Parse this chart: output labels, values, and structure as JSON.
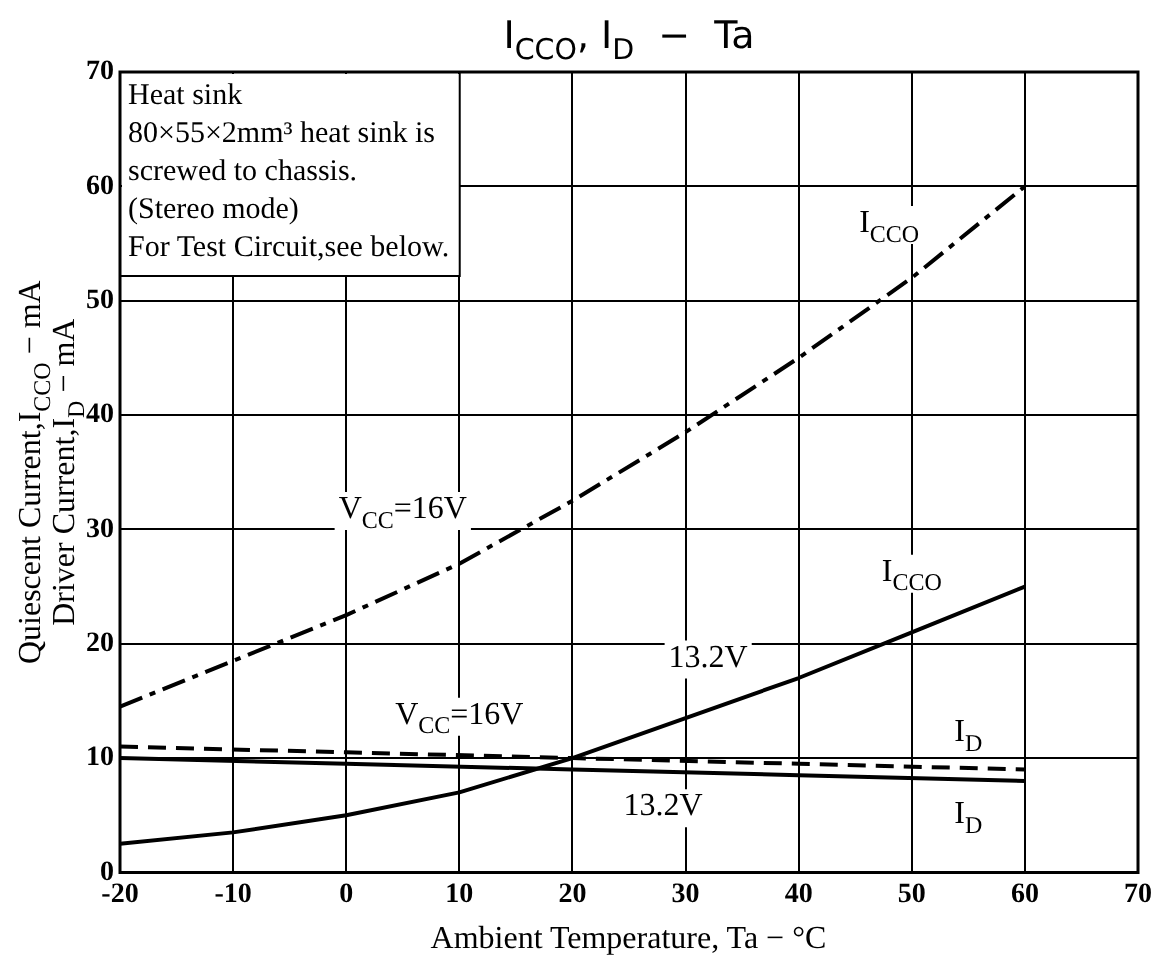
{
  "chart_data": {
    "type": "line",
    "title": "I$_{CCO}$, I$_{D}$  −  Ta",
    "xlabel": "Ambient Temperature, Ta − °C",
    "ylabel": "Quiescent Current,I$_{CCO}$ − mA\nDriver Current,I$_{D}$ − mA",
    "xlim": [
      -20,
      70
    ],
    "xticks": [
      -20,
      -10,
      0,
      10,
      20,
      30,
      40,
      50,
      60,
      70
    ],
    "ylim": [
      0,
      70
    ],
    "yticks": [
      0,
      10,
      20,
      30,
      40,
      50,
      60,
      70
    ],
    "grid": true,
    "legend": false,
    "marker": "none",
    "series": [
      {
        "color": "#000000",
        "line_style": "dashdot",
        "x": [
          -20,
          -10,
          0,
          10,
          20,
          30,
          40,
          50,
          60
        ],
        "values": [
          14.5,
          18.5,
          22.5,
          27,
          32.5,
          38.5,
          45,
          52,
          60
        ]
      },
      {
        "color": "#000000",
        "line_style": "solid",
        "x": [
          -20,
          -10,
          0,
          10,
          20,
          30,
          40,
          50,
          60
        ],
        "values": [
          2.5,
          3.5,
          5,
          7,
          10,
          13.5,
          17,
          21,
          25
        ]
      },
      {
        "color": "#000000",
        "line_style": "dashed",
        "x": [
          -20,
          0,
          20,
          40,
          60
        ],
        "values": [
          11,
          10.5,
          10,
          9.5,
          9
        ]
      },
      {
        "color": "#000000",
        "line_style": "solid",
        "x": [
          -20,
          0,
          20,
          40,
          60
        ],
        "values": [
          10,
          9.5,
          9,
          8.5,
          8
        ]
      }
    ],
    "annotations": [
      "Heat sink\n80×55×2mm³ heat sink is\nscrewed to chassis.\n(Stereo mode)\nFor Test Circuit,see below.",
      "I$_{CCO}$",
      "V$_{CC}$=16V",
      "I$_{CCO}$",
      "13.2V",
      "V$_{CC}$=16V",
      "I$_{D}$",
      "13.2V",
      "I$_{D}$"
    ]
  }
}
